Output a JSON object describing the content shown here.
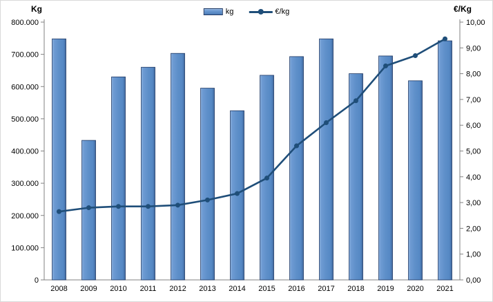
{
  "chart_data": {
    "type": "bar",
    "title": "",
    "categories": [
      "2008",
      "2009",
      "2010",
      "2011",
      "2012",
      "2013",
      "2014",
      "2015",
      "2016",
      "2017",
      "2018",
      "2019",
      "2020",
      "2021"
    ],
    "series": [
      {
        "name": "kg",
        "type": "bar",
        "axis": "left",
        "values": [
          748000,
          433000,
          630000,
          660000,
          703000,
          595000,
          525000,
          635000,
          693000,
          748000,
          640000,
          695000,
          618000,
          742000
        ]
      },
      {
        "name": "€/kg",
        "type": "line",
        "axis": "right",
        "values": [
          2.65,
          2.8,
          2.85,
          2.85,
          2.9,
          3.1,
          3.35,
          3.95,
          5.2,
          6.1,
          6.95,
          8.3,
          8.7,
          9.35
        ]
      }
    ],
    "left_axis": {
      "title": "Kg",
      "min": 0,
      "max": 800000,
      "step": 100000,
      "tick_labels": [
        "0",
        "100.000",
        "200.000",
        "300.000",
        "400.000",
        "500.000",
        "600.000",
        "700.000",
        "800.000"
      ]
    },
    "right_axis": {
      "title": "€/Kg",
      "min": 0,
      "max": 10,
      "step": 1,
      "tick_labels": [
        "0,00",
        "1,00",
        "2,00",
        "3,00",
        "4,00",
        "5,00",
        "6,00",
        "7,00",
        "8,00",
        "9,00",
        "10,00"
      ]
    },
    "legend": {
      "position": "top",
      "items": [
        {
          "label": "kg",
          "swatch": "bar"
        },
        {
          "label": "€/kg",
          "swatch": "line"
        }
      ]
    },
    "grid": false,
    "colors": {
      "bar_fill": "#5E8FC9",
      "bar_highlight": "#8FB3DD",
      "bar_shade": "#41699E",
      "bar_border": "#1F3864",
      "line": "#1F4E79",
      "axis": "#808080",
      "text": "#000000"
    }
  }
}
